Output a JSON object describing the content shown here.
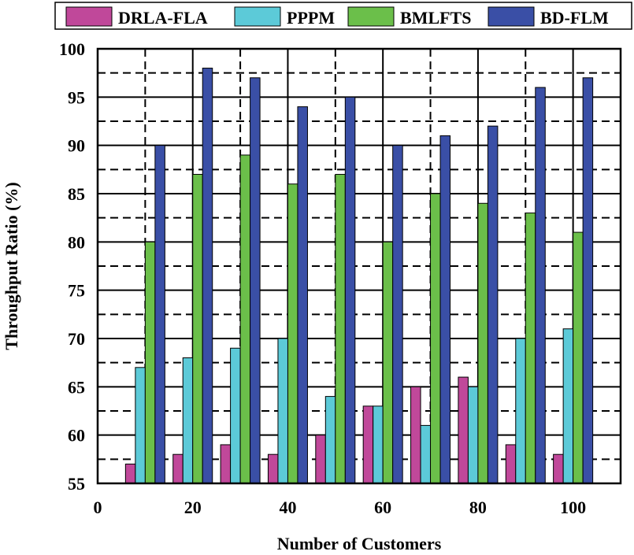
{
  "chart_data": {
    "type": "bar",
    "title": "",
    "xlabel": "Number of Customers",
    "ylabel": "Throughput Ratio (%)",
    "xlim": [
      0,
      110
    ],
    "ylim": [
      55,
      100
    ],
    "xticks": [
      0,
      20,
      40,
      60,
      80,
      100
    ],
    "yticks": [
      55,
      60,
      65,
      70,
      75,
      80,
      85,
      90,
      95,
      100
    ],
    "x": [
      10,
      20,
      30,
      40,
      50,
      60,
      70,
      80,
      90,
      100
    ],
    "legend_position": "top",
    "grid": true,
    "series": [
      {
        "name": "DRLA-FLA",
        "color": "#c0489a",
        "values": [
          57,
          58,
          59,
          58,
          60,
          63,
          65,
          66,
          59,
          58
        ]
      },
      {
        "name": "PPPM",
        "color": "#5ccad8",
        "values": [
          67,
          68,
          69,
          70,
          64,
          63,
          61,
          65,
          70,
          71
        ]
      },
      {
        "name": "BMLFTS",
        "color": "#6bbf4a",
        "values": [
          80,
          87,
          89,
          86,
          87,
          80,
          85,
          84,
          83,
          81
        ]
      },
      {
        "name": "BD-FLM",
        "color": "#3a4fa6",
        "values": [
          90,
          98,
          97,
          94,
          95,
          90,
          91,
          92,
          96,
          97
        ]
      }
    ]
  }
}
